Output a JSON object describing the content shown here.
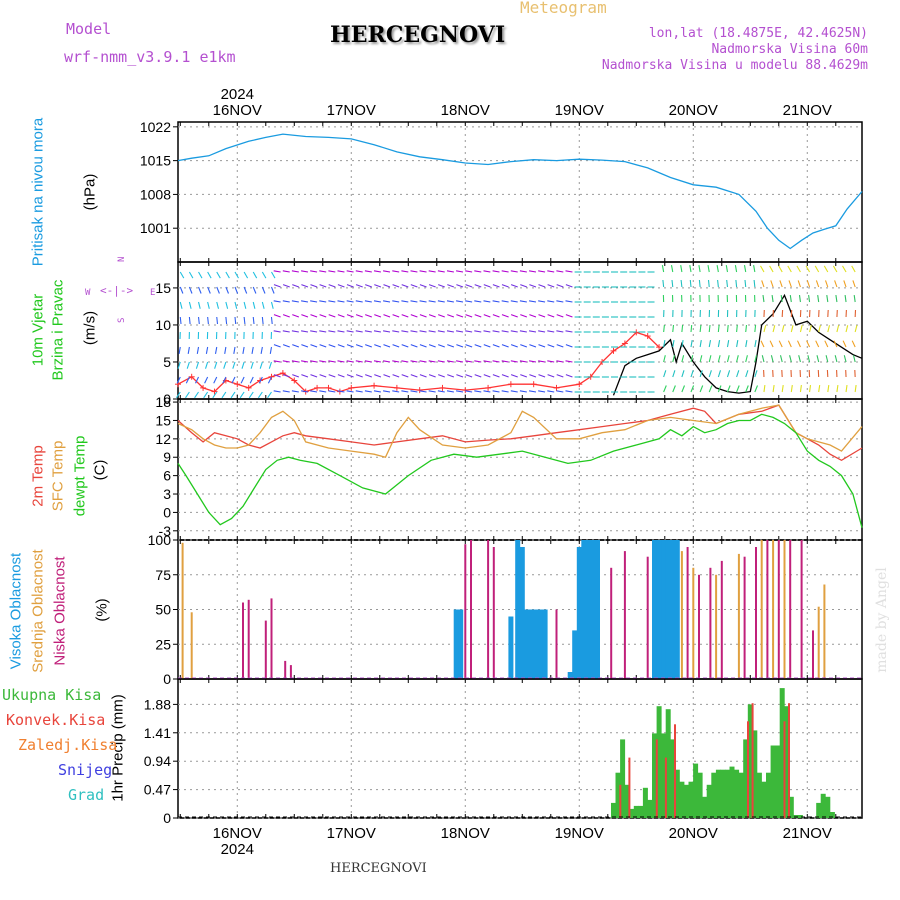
{
  "header": {
    "model_label": "Model",
    "model_name": "wrf-nmm_v3.9.1 e1km",
    "location": "HERCEGNOVI",
    "meteogram": "Meteogram",
    "lonlat": "lon,lat (18.4875E, 42.4625N)",
    "altitude": "Nadmorska Visina 60m",
    "model_altitude": "Nadmorska Visina u modelu 88.4629m"
  },
  "footer": {
    "location": "HERCEGNOVI",
    "credit": "made by Angel"
  },
  "time_axis": {
    "labels": [
      "16NOV",
      "17NOV",
      "18NOV",
      "19NOV",
      "20NOV",
      "21NOV"
    ],
    "year": "2024",
    "start_day": 15.48,
    "end_day": 21.48
  },
  "colors": {
    "pressure": "#1a9be0",
    "t2m": "#e8453c",
    "sfc": "#e0a040",
    "dewpt": "#22c81e",
    "high_cloud": "#1a9be0",
    "mid_cloud": "#e0a040",
    "low_cloud": "#c0207a",
    "total_precip": "#3cb83a",
    "conv_precip": "#e8453c",
    "wind_label": "#22c81e",
    "compass": "#b450d0",
    "gust": "#ff3333",
    "wind_speed": "#000000"
  },
  "panels": {
    "pressure": {
      "labels": [
        "Pritisak na nivou mora"
      ],
      "unit": "(hPa)",
      "ticks": [
        1001,
        1008,
        1015,
        1022
      ]
    },
    "wind": {
      "labels": [
        "10m Vjetar",
        "Brzina i Pravac"
      ],
      "unit": "(m/s)",
      "ticks": [
        0,
        5,
        10,
        15
      ],
      "compass": {
        "n": "N",
        "e": "E",
        "w": "W",
        "s": "S"
      }
    },
    "temperature": {
      "labels": [
        "2m Temp",
        "SFC Temp",
        "dewpt Temp"
      ],
      "unit": "(C)",
      "ticks": [
        -3,
        0,
        3,
        6,
        9,
        12,
        15,
        18
      ]
    },
    "cloud": {
      "labels": [
        "Visoka Oblacnost",
        "Srednja Oblacnost",
        "Niska Oblacnost"
      ],
      "unit": "(%)",
      "ticks": [
        0,
        25,
        50,
        75,
        100
      ]
    },
    "precip": {
      "unit": "1hr Precip (mm)",
      "ticks": [
        0,
        0.47,
        0.94,
        1.41,
        1.88
      ],
      "legend": [
        "Ukupna Kisa",
        "Konvek.Kisa",
        "Zaledj.Kisa",
        "Snijeg",
        "Grad"
      ],
      "legend_colors": [
        "#3cb83a",
        "#e8453c",
        "#f08030",
        "#4040e0",
        "#30c0c0"
      ]
    }
  },
  "chart_data": [
    {
      "type": "line",
      "title": "",
      "ylabel": "Pritisak na nivou mora (hPa)",
      "ylim": [
        994,
        1023
      ],
      "series": [
        {
          "name": "Pritisak na nivou mora",
          "x": [
            15.48,
            15.6,
            15.75,
            15.9,
            16.1,
            16.25,
            16.4,
            16.6,
            16.8,
            17.0,
            17.2,
            17.4,
            17.6,
            17.8,
            18.0,
            18.2,
            18.4,
            18.6,
            18.8,
            19.0,
            19.2,
            19.4,
            19.6,
            19.8,
            20.0,
            20.2,
            20.4,
            20.55,
            20.65,
            20.75,
            20.85,
            20.95,
            21.05,
            21.15,
            21.25,
            21.35,
            21.48
          ],
          "values": [
            1015,
            1015.5,
            1016,
            1017.5,
            1019,
            1019.8,
            1020.5,
            1020,
            1019.8,
            1019.5,
            1018.3,
            1016.8,
            1015.8,
            1015.2,
            1014.5,
            1014.2,
            1014.8,
            1015.2,
            1015,
            1015.3,
            1015.1,
            1014.8,
            1013.5,
            1011.5,
            1010,
            1009.5,
            1008,
            1004.5,
            1001,
            998.5,
            996.8,
            998.5,
            1000,
            1000.8,
            1001.5,
            1005,
            1008.6
          ]
        }
      ]
    },
    {
      "type": "line",
      "title": "",
      "ylabel": "10m Vjetar Brzina i Pravac (m/s)",
      "ylim": [
        0,
        18.5
      ],
      "series": [
        {
          "name": "gust",
          "x": [
            15.48,
            15.6,
            15.7,
            15.8,
            15.9,
            16.0,
            16.1,
            16.2,
            16.3,
            16.4,
            16.5,
            16.6,
            16.7,
            16.8,
            16.9,
            17.0,
            17.2,
            17.4,
            17.6,
            17.8,
            18.0,
            18.2,
            18.4,
            18.6,
            18.8,
            19.0,
            19.1,
            19.2,
            19.3,
            19.4,
            19.5,
            19.6,
            19.7
          ],
          "values": [
            2,
            3,
            1.5,
            1,
            2.5,
            2,
            1.5,
            2.5,
            3,
            3.5,
            2.5,
            1,
            1.5,
            1.5,
            1,
            1.5,
            1.8,
            1.5,
            1.2,
            1.5,
            1.2,
            1.5,
            2,
            2,
            1.5,
            2,
            3,
            5,
            6.5,
            7.5,
            9,
            8.5,
            7
          ]
        },
        {
          "name": "wind speed",
          "x": [
            19.3,
            19.4,
            19.5,
            19.6,
            19.7,
            19.8,
            19.85,
            19.9,
            20.0,
            20.1,
            20.2,
            20.3,
            20.4,
            20.5,
            20.55,
            20.6,
            20.7,
            20.8,
            20.9,
            21.0,
            21.1,
            21.2,
            21.3,
            21.4,
            21.48
          ],
          "values": [
            0.5,
            4.5,
            5.5,
            6,
            6.5,
            8,
            5,
            7.5,
            5,
            3,
            1.5,
            1,
            0.8,
            1,
            5,
            10,
            11.5,
            14,
            10,
            10.5,
            9,
            8,
            7,
            6,
            5.5
          ]
        }
      ]
    },
    {
      "type": "line",
      "title": "",
      "ylabel": "(C)",
      "ylim": [
        -4.5,
        18.5
      ],
      "series": [
        {
          "name": "2m Temp",
          "x": [
            15.48,
            15.6,
            15.7,
            15.8,
            15.9,
            16.0,
            16.1,
            16.2,
            16.3,
            16.4,
            16.5,
            16.6,
            16.8,
            17.0,
            17.2,
            17.4,
            17.6,
            17.8,
            18.0,
            18.2,
            18.4,
            18.6,
            18.8,
            19.0,
            19.2,
            19.4,
            19.6,
            19.8,
            20.0,
            20.1,
            20.2,
            20.4,
            20.6,
            20.75,
            20.9,
            21.0,
            21.1,
            21.2,
            21.3,
            21.48
          ],
          "values": [
            15,
            13,
            11.5,
            13,
            12.5,
            12,
            11,
            10.5,
            11.5,
            12.5,
            13,
            12.5,
            12,
            11.5,
            11,
            11.5,
            12,
            12.5,
            11.5,
            11.8,
            12,
            12.5,
            13,
            13.5,
            14,
            14.5,
            15,
            16,
            17,
            16.5,
            14.5,
            16,
            16.5,
            17.5,
            13,
            12,
            11,
            9.5,
            8.5,
            10.5
          ]
        },
        {
          "name": "SFC Temp",
          "x": [
            15.48,
            15.6,
            15.7,
            15.8,
            15.9,
            16.0,
            16.1,
            16.2,
            16.3,
            16.4,
            16.5,
            16.6,
            16.8,
            17.0,
            17.2,
            17.3,
            17.4,
            17.5,
            17.6,
            17.8,
            18.0,
            18.2,
            18.4,
            18.5,
            18.6,
            18.8,
            19.0,
            19.2,
            19.4,
            19.6,
            19.8,
            20.0,
            20.2,
            20.4,
            20.6,
            20.75,
            20.9,
            21.0,
            21.1,
            21.2,
            21.3,
            21.48
          ],
          "values": [
            14.5,
            13.5,
            12,
            11,
            10.5,
            10.5,
            11,
            13,
            15.5,
            16.5,
            15,
            11.5,
            10.5,
            10,
            9.5,
            9,
            13,
            15.5,
            13.5,
            11,
            10.5,
            11,
            13,
            16.5,
            15.5,
            12,
            12,
            13,
            13.5,
            15,
            15.5,
            15,
            14.5,
            16,
            17,
            17.5,
            13,
            12,
            11.5,
            11,
            10,
            14
          ]
        },
        {
          "name": "dewpt Temp",
          "x": [
            15.48,
            15.55,
            15.65,
            15.75,
            15.85,
            15.95,
            16.05,
            16.15,
            16.25,
            16.35,
            16.45,
            16.55,
            16.7,
            16.9,
            17.1,
            17.3,
            17.5,
            17.7,
            17.9,
            18.1,
            18.3,
            18.5,
            18.7,
            18.9,
            19.1,
            19.3,
            19.5,
            19.7,
            19.8,
            19.9,
            20.0,
            20.1,
            20.2,
            20.3,
            20.4,
            20.5,
            20.6,
            20.7,
            20.8,
            20.9,
            21.0,
            21.1,
            21.2,
            21.3,
            21.4,
            21.48
          ],
          "values": [
            8,
            6,
            3,
            0,
            -2,
            -1,
            1,
            4,
            7,
            8.5,
            9,
            8.5,
            8,
            6,
            4,
            3,
            6,
            8.5,
            9.5,
            9,
            9.5,
            10,
            9,
            8,
            8.5,
            10,
            11,
            12,
            13.5,
            12.5,
            14,
            13,
            13.5,
            14.5,
            15,
            15,
            16,
            15.5,
            14.5,
            13,
            10,
            8.5,
            7.5,
            6,
            3,
            -2.5
          ]
        }
      ]
    },
    {
      "type": "bar",
      "title": "",
      "ylabel": "(%)",
      "ylim": [
        0,
        100
      ],
      "series": [
        {
          "name": "Visoka Oblacnost",
          "x": [
            17.92,
            17.96,
            18.4,
            18.46,
            18.5,
            18.54,
            18.58,
            18.62,
            18.66,
            18.7,
            18.92,
            18.96,
            19.0,
            19.04,
            19.08,
            19.12,
            19.16,
            19.66,
            19.7,
            19.74,
            19.78,
            19.82,
            19.86
          ],
          "values": [
            50,
            50,
            45,
            100,
            95,
            50,
            50,
            50,
            50,
            50,
            5,
            35,
            95,
            100,
            100,
            100,
            100,
            100,
            100,
            100,
            100,
            100,
            100
          ]
        },
        {
          "name": "Srednja Oblacnost",
          "x": [
            15.52,
            15.6,
            19.9,
            20.0,
            20.2,
            20.4,
            20.6,
            20.7,
            20.8,
            21.1,
            21.15
          ],
          "values": [
            98,
            48,
            92,
            80,
            75,
            90,
            100,
            100,
            100,
            52,
            68
          ]
        },
        {
          "name": "Niska Oblacnost",
          "x": [
            16.05,
            16.1,
            16.25,
            16.3,
            16.42,
            16.47,
            18.0,
            18.05,
            18.2,
            18.25,
            18.8,
            19.28,
            19.4,
            19.6,
            19.95,
            20.05,
            20.15,
            20.25,
            20.45,
            20.55,
            20.65,
            20.75,
            20.85,
            20.95,
            21.05
          ],
          "values": [
            55,
            57,
            42,
            58,
            13,
            10,
            97,
            100,
            100,
            95,
            50,
            80,
            92,
            88,
            95,
            75,
            80,
            85,
            88,
            95,
            100,
            100,
            100,
            100,
            35
          ]
        }
      ]
    },
    {
      "type": "bar",
      "title": "",
      "ylabel": "1hr Precip (mm)",
      "ylim": [
        0,
        2.3
      ],
      "series": [
        {
          "name": "Ukupna Kisa",
          "x": [
            19.3,
            19.34,
            19.38,
            19.42,
            19.46,
            19.5,
            19.54,
            19.58,
            19.62,
            19.66,
            19.7,
            19.74,
            19.78,
            19.82,
            19.86,
            19.9,
            19.94,
            19.98,
            20.02,
            20.06,
            20.1,
            20.14,
            20.18,
            20.22,
            20.26,
            20.3,
            20.34,
            20.38,
            20.42,
            20.46,
            20.5,
            20.54,
            20.58,
            20.62,
            20.66,
            20.7,
            20.74,
            20.78,
            20.82,
            20.86,
            20.9,
            20.94,
            21.1,
            21.14,
            21.18,
            21.22
          ],
          "values": [
            0.25,
            0.75,
            1.3,
            0.55,
            0.15,
            0.2,
            0.2,
            0.5,
            0.3,
            1.4,
            1.85,
            1.4,
            1.8,
            1.3,
            0.8,
            0.6,
            0.55,
            0.6,
            0.9,
            0.75,
            0.35,
            0.55,
            0.75,
            0.8,
            0.8,
            0.8,
            0.85,
            0.8,
            0.75,
            1.3,
            1.88,
            1.45,
            0.75,
            0.6,
            0.75,
            1.2,
            1.2,
            2.15,
            1.85,
            0.35,
            0.05,
            0.05,
            0.25,
            0.4,
            0.35,
            0.1
          ]
        },
        {
          "name": "Konvek.Kisa",
          "x": [
            19.36,
            19.44,
            19.68,
            19.76,
            19.84,
            20.48,
            20.52,
            20.8,
            20.84
          ],
          "values": [
            0.55,
            1.0,
            1.3,
            1.0,
            1.55,
            1.6,
            1.9,
            1.6,
            1.9
          ]
        }
      ]
    }
  ]
}
